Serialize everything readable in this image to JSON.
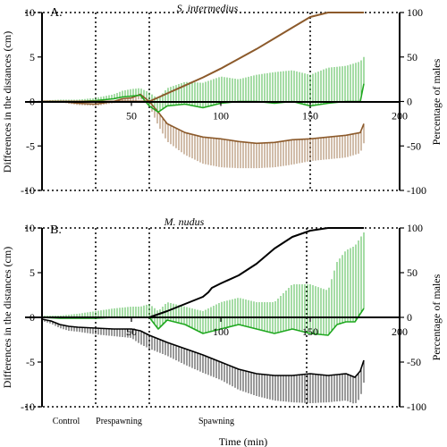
{
  "chart_data": [
    {
      "type": "line",
      "panel_label": "A.",
      "title": "S. intermedius",
      "ylabel": "Differences in the distances (cm)",
      "ylabel_right": "Percentage of males",
      "xlim": [
        0,
        200
      ],
      "ylim": [
        -10,
        10
      ],
      "ylim_right": [
        -100,
        100
      ],
      "x_ticks": [
        "50",
        "100",
        "150",
        "200"
      ],
      "y_ticks": [
        "10",
        "5",
        "0",
        "-5",
        "-10"
      ],
      "y_ticks_right": [
        "100",
        "50",
        "0",
        "-50",
        "-100"
      ],
      "phase_lines": [
        30,
        60,
        150
      ],
      "colors": {
        "difference_a": "#8c5a2b",
        "difference_b": "#1fa81f",
        "percentage": "#8c5a2b"
      },
      "series": [
        {
          "axis": "left",
          "x": [
            0,
            10,
            20,
            30,
            40,
            45,
            50,
            55,
            60,
            65,
            70,
            80,
            90,
            100,
            110,
            120,
            130,
            140,
            150,
            160,
            170,
            178,
            180
          ],
          "y": [
            0,
            0,
            -0.2,
            -0.3,
            0,
            0.3,
            0.4,
            0.8,
            0,
            -1.2,
            -2.5,
            -3.5,
            -4.0,
            -4.2,
            -4.5,
            -4.7,
            -4.6,
            -4.3,
            -4.2,
            -4.0,
            -3.8,
            -3.5,
            -2.5
          ],
          "err": [
            0.1,
            0.1,
            0.2,
            0.2,
            0.2,
            0.4,
            0.5,
            0.5,
            0.5,
            1.5,
            2.0,
            2.5,
            3.0,
            3.2,
            3.0,
            2.8,
            2.8,
            2.8,
            2.5,
            2.5,
            2.5,
            2.3,
            2.2
          ],
          "err_dir": -1
        },
        {
          "axis": "left",
          "x": [
            0,
            10,
            20,
            30,
            40,
            45,
            50,
            55,
            60,
            65,
            70,
            80,
            90,
            100,
            110,
            120,
            130,
            140,
            150,
            160,
            170,
            178,
            180
          ],
          "y": [
            0,
            0,
            0,
            0.1,
            0.3,
            0.5,
            0.6,
            0.7,
            -0.5,
            -1.2,
            -0.5,
            -0.3,
            -0.7,
            -0.2,
            0,
            0,
            -0.2,
            0,
            -0.5,
            -0.2,
            0,
            0,
            2.0
          ],
          "err": [
            0.1,
            0.2,
            0.2,
            0.3,
            0.5,
            0.7,
            0.8,
            0.8,
            1.5,
            1.5,
            2.0,
            2.5,
            2.8,
            3.0,
            2.5,
            3.0,
            3.5,
            3.5,
            3.5,
            4.0,
            4.0,
            4.5,
            3.0
          ],
          "err_dir": 1
        },
        {
          "axis": "right",
          "x": [
            0,
            50,
            55,
            60,
            70,
            80,
            90,
            100,
            110,
            120,
            130,
            140,
            150,
            160,
            170,
            180
          ],
          "y": [
            0,
            0,
            0,
            0,
            9,
            18,
            27,
            37,
            48,
            59,
            71,
            83,
            95,
            100,
            100,
            100
          ]
        }
      ]
    },
    {
      "type": "line",
      "panel_label": "B.",
      "title": "M. nudus",
      "ylabel": "Differences in the distances (cm)",
      "ylabel_right": "Percentage of males",
      "xlabel": "Time (min)",
      "xlim": [
        0,
        200
      ],
      "ylim": [
        -10,
        10
      ],
      "ylim_right": [
        -100,
        100
      ],
      "x_ticks": [
        "50",
        "100",
        "150",
        "200"
      ],
      "y_ticks": [
        "10",
        "5",
        "0",
        "-5",
        "-10"
      ],
      "y_ticks_right": [
        "100",
        "50",
        "0",
        "-50",
        "-100"
      ],
      "phase_lines": [
        30,
        60,
        148
      ],
      "phase_labels": [
        "Control",
        "Prespawning",
        "Spawning"
      ],
      "colors": {
        "difference_a": "#000000",
        "difference_b": "#1fa81f",
        "percentage": "#000000"
      },
      "series": [
        {
          "axis": "left",
          "x": [
            0,
            5,
            10,
            15,
            20,
            30,
            40,
            50,
            55,
            60,
            70,
            80,
            90,
            100,
            110,
            120,
            130,
            140,
            150,
            160,
            170,
            175,
            178,
            180
          ],
          "y": [
            -0.2,
            -0.4,
            -0.8,
            -1.0,
            -1.1,
            -1.2,
            -1.3,
            -1.3,
            -1.5,
            -2.0,
            -2.8,
            -3.5,
            -4.2,
            -5.0,
            -5.8,
            -6.3,
            -6.5,
            -6.5,
            -6.3,
            -6.5,
            -6.3,
            -6.7,
            -6.0,
            -4.8
          ],
          "err": [
            0.2,
            0.3,
            0.4,
            0.5,
            0.5,
            0.7,
            0.8,
            1.0,
            1.5,
            1.5,
            1.5,
            1.8,
            2.0,
            2.0,
            2.3,
            2.5,
            2.8,
            3.0,
            3.3,
            3.0,
            3.0,
            3.0,
            3.0,
            2.5
          ],
          "err_dir": -1
        },
        {
          "axis": "left",
          "x": [
            0,
            10,
            20,
            30,
            40,
            50,
            55,
            60,
            65,
            70,
            80,
            90,
            100,
            110,
            120,
            130,
            140,
            150,
            160,
            165,
            170,
            175,
            180
          ],
          "y": [
            0,
            -0.1,
            -0.1,
            -0.1,
            0,
            0,
            0,
            0,
            -1.3,
            -0.3,
            -0.8,
            -1.8,
            -1.3,
            -0.8,
            -1.3,
            -1.8,
            -1.3,
            -1.8,
            -2.0,
            -0.8,
            -0.5,
            -0.5,
            1.0
          ],
          "err": [
            0.2,
            0.3,
            0.5,
            0.8,
            1.0,
            1.2,
            1.2,
            1.5,
            2.0,
            2.0,
            2.0,
            2.5,
            3.0,
            3.0,
            3.0,
            3.5,
            5.0,
            5.5,
            5.0,
            7.0,
            8.0,
            8.5,
            8.5
          ],
          "err_dir": 1
        },
        {
          "axis": "right",
          "x": [
            0,
            55,
            60,
            70,
            80,
            90,
            93,
            95,
            100,
            110,
            120,
            130,
            140,
            150,
            160,
            170,
            180
          ],
          "y": [
            0,
            0,
            0,
            7,
            15,
            23,
            28,
            33,
            38,
            47,
            60,
            77,
            90,
            97,
            100,
            100,
            100
          ]
        }
      ]
    }
  ]
}
